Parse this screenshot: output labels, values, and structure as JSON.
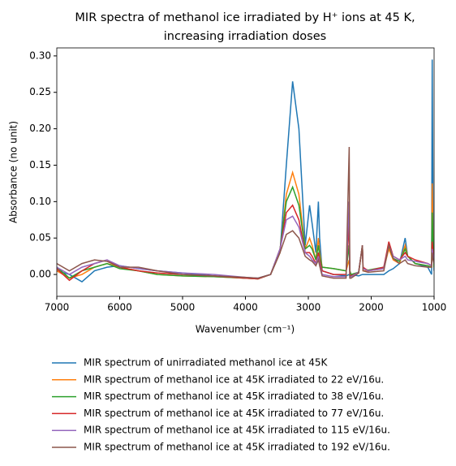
{
  "chart_data": {
    "type": "line",
    "title": [
      "MIR spectra of methanol ice irradiated by H⁺ ions at 45 K,",
      "increasing irradiation doses"
    ],
    "xlabel": "Wavenumber (cm⁻¹)",
    "ylabel": "Absorbance (no unit)",
    "x": [
      7000,
      6800,
      6600,
      6400,
      6200,
      6000,
      5700,
      5400,
      5000,
      4500,
      4000,
      3800,
      3600,
      3450,
      3350,
      3250,
      3150,
      3050,
      2980,
      2940,
      2880,
      2840,
      2820,
      2780,
      2600,
      2400,
      2350,
      2340,
      2320,
      2200,
      2140,
      2130,
      2050,
      1800,
      1720,
      1650,
      1550,
      1460,
      1420,
      1300,
      1100,
      1040,
      1030,
      1015,
      1000
    ],
    "series": [
      {
        "name": "MIR spectrum of unirradiated methanol ice at 45K",
        "color": "#1f77b4",
        "values": [
          0.005,
          0.0,
          -0.01,
          0.005,
          0.01,
          0.012,
          0.008,
          0.005,
          0.002,
          -0.002,
          -0.005,
          -0.005,
          0.0,
          0.03,
          0.15,
          0.265,
          0.2,
          0.04,
          0.095,
          0.07,
          0.03,
          0.1,
          0.05,
          0.005,
          0.0,
          -0.002,
          0.0,
          -0.002,
          0.0,
          -0.002,
          0.0,
          0.0,
          0.0,
          0.0,
          0.005,
          0.008,
          0.015,
          0.05,
          0.025,
          0.015,
          0.01,
          0.0,
          0.295,
          0.05,
          0.005
        ]
      },
      {
        "name": "MIR spectrum of methanol ice at 45K irradiated to 22 eV/16u.",
        "color": "#ff7f0e",
        "values": [
          0.005,
          -0.005,
          0.0,
          0.01,
          0.015,
          0.01,
          0.005,
          0.0,
          -0.002,
          -0.003,
          -0.005,
          -0.006,
          0.0,
          0.03,
          0.11,
          0.14,
          0.11,
          0.035,
          0.05,
          0.04,
          0.02,
          0.05,
          0.03,
          0.01,
          0.008,
          0.005,
          0.02,
          0.005,
          0.0,
          0.002,
          0.04,
          0.005,
          0.005,
          0.008,
          0.035,
          0.02,
          0.015,
          0.04,
          0.025,
          0.015,
          0.012,
          0.01,
          0.125,
          0.04,
          0.01
        ]
      },
      {
        "name": "MIR spectrum of methanol ice at 45K irradiated to 38 eV/16u.",
        "color": "#2ca02c",
        "values": [
          0.01,
          -0.005,
          0.005,
          0.01,
          0.015,
          0.008,
          0.005,
          0.0,
          -0.002,
          -0.003,
          -0.005,
          -0.006,
          0.0,
          0.035,
          0.1,
          0.12,
          0.095,
          0.035,
          0.04,
          0.035,
          0.02,
          0.04,
          0.025,
          0.01,
          0.008,
          0.005,
          0.04,
          0.005,
          0.0,
          0.003,
          0.04,
          0.008,
          0.006,
          0.01,
          0.04,
          0.022,
          0.018,
          0.035,
          0.025,
          0.015,
          0.012,
          0.01,
          0.085,
          0.04,
          0.01
        ]
      },
      {
        "name": "MIR spectrum of methanol ice at 45K irradiated to 77 eV/16u.",
        "color": "#d62728",
        "values": [
          0.008,
          -0.008,
          0.005,
          0.015,
          0.02,
          0.01,
          0.005,
          0.002,
          0.0,
          -0.002,
          -0.005,
          -0.006,
          0.0,
          0.035,
          0.085,
          0.095,
          0.075,
          0.03,
          0.03,
          0.025,
          0.015,
          0.03,
          0.02,
          0.005,
          0.0,
          0.0,
          0.07,
          0.0,
          -0.002,
          0.003,
          0.04,
          0.01,
          0.005,
          0.01,
          0.045,
          0.025,
          0.02,
          0.03,
          0.025,
          0.02,
          0.015,
          0.012,
          0.045,
          0.03,
          0.015
        ]
      },
      {
        "name": "MIR spectrum of methanol ice at 45K irradiated to 115 eV/16u.",
        "color": "#9467bd",
        "values": [
          0.01,
          0.0,
          0.01,
          0.015,
          0.02,
          0.012,
          0.008,
          0.005,
          0.002,
          0.0,
          -0.004,
          -0.005,
          0.0,
          0.035,
          0.075,
          0.08,
          0.065,
          0.03,
          0.025,
          0.02,
          0.015,
          0.025,
          0.015,
          0.0,
          -0.003,
          -0.003,
          0.1,
          -0.003,
          -0.003,
          0.003,
          0.04,
          0.008,
          0.005,
          0.008,
          0.04,
          0.025,
          0.02,
          0.025,
          0.02,
          0.018,
          0.015,
          0.012,
          0.035,
          0.025,
          0.02
        ]
      },
      {
        "name": "MIR spectrum of methanol ice at 45K irradiated to 192 eV/16u.",
        "color": "#8c564b",
        "values": [
          0.015,
          0.005,
          0.015,
          0.02,
          0.018,
          0.01,
          0.01,
          0.005,
          0.0,
          -0.002,
          -0.004,
          -0.005,
          0.0,
          0.03,
          0.055,
          0.06,
          0.05,
          0.025,
          0.02,
          0.018,
          0.012,
          0.02,
          0.012,
          -0.002,
          -0.005,
          -0.005,
          0.175,
          -0.005,
          -0.005,
          0.002,
          0.04,
          0.005,
          0.003,
          0.005,
          0.04,
          0.022,
          0.015,
          0.02,
          0.015,
          0.012,
          0.01,
          0.01,
          0.03,
          0.02,
          0.015
        ]
      }
    ],
    "xlim": [
      7000,
      1000
    ],
    "xticks": [
      7000,
      6000,
      5000,
      4000,
      3000,
      2000,
      1000
    ],
    "ylim": [
      -0.03,
      0.311
    ],
    "yticks": [
      {
        "value": 0,
        "label": "0.00"
      },
      0.05,
      {
        "value": 0.1,
        "label": "0.10"
      },
      0.15,
      {
        "value": 0.2,
        "label": "0.20"
      },
      0.25,
      {
        "value": 0.3,
        "label": "0.30"
      }
    ],
    "legend": "below"
  }
}
